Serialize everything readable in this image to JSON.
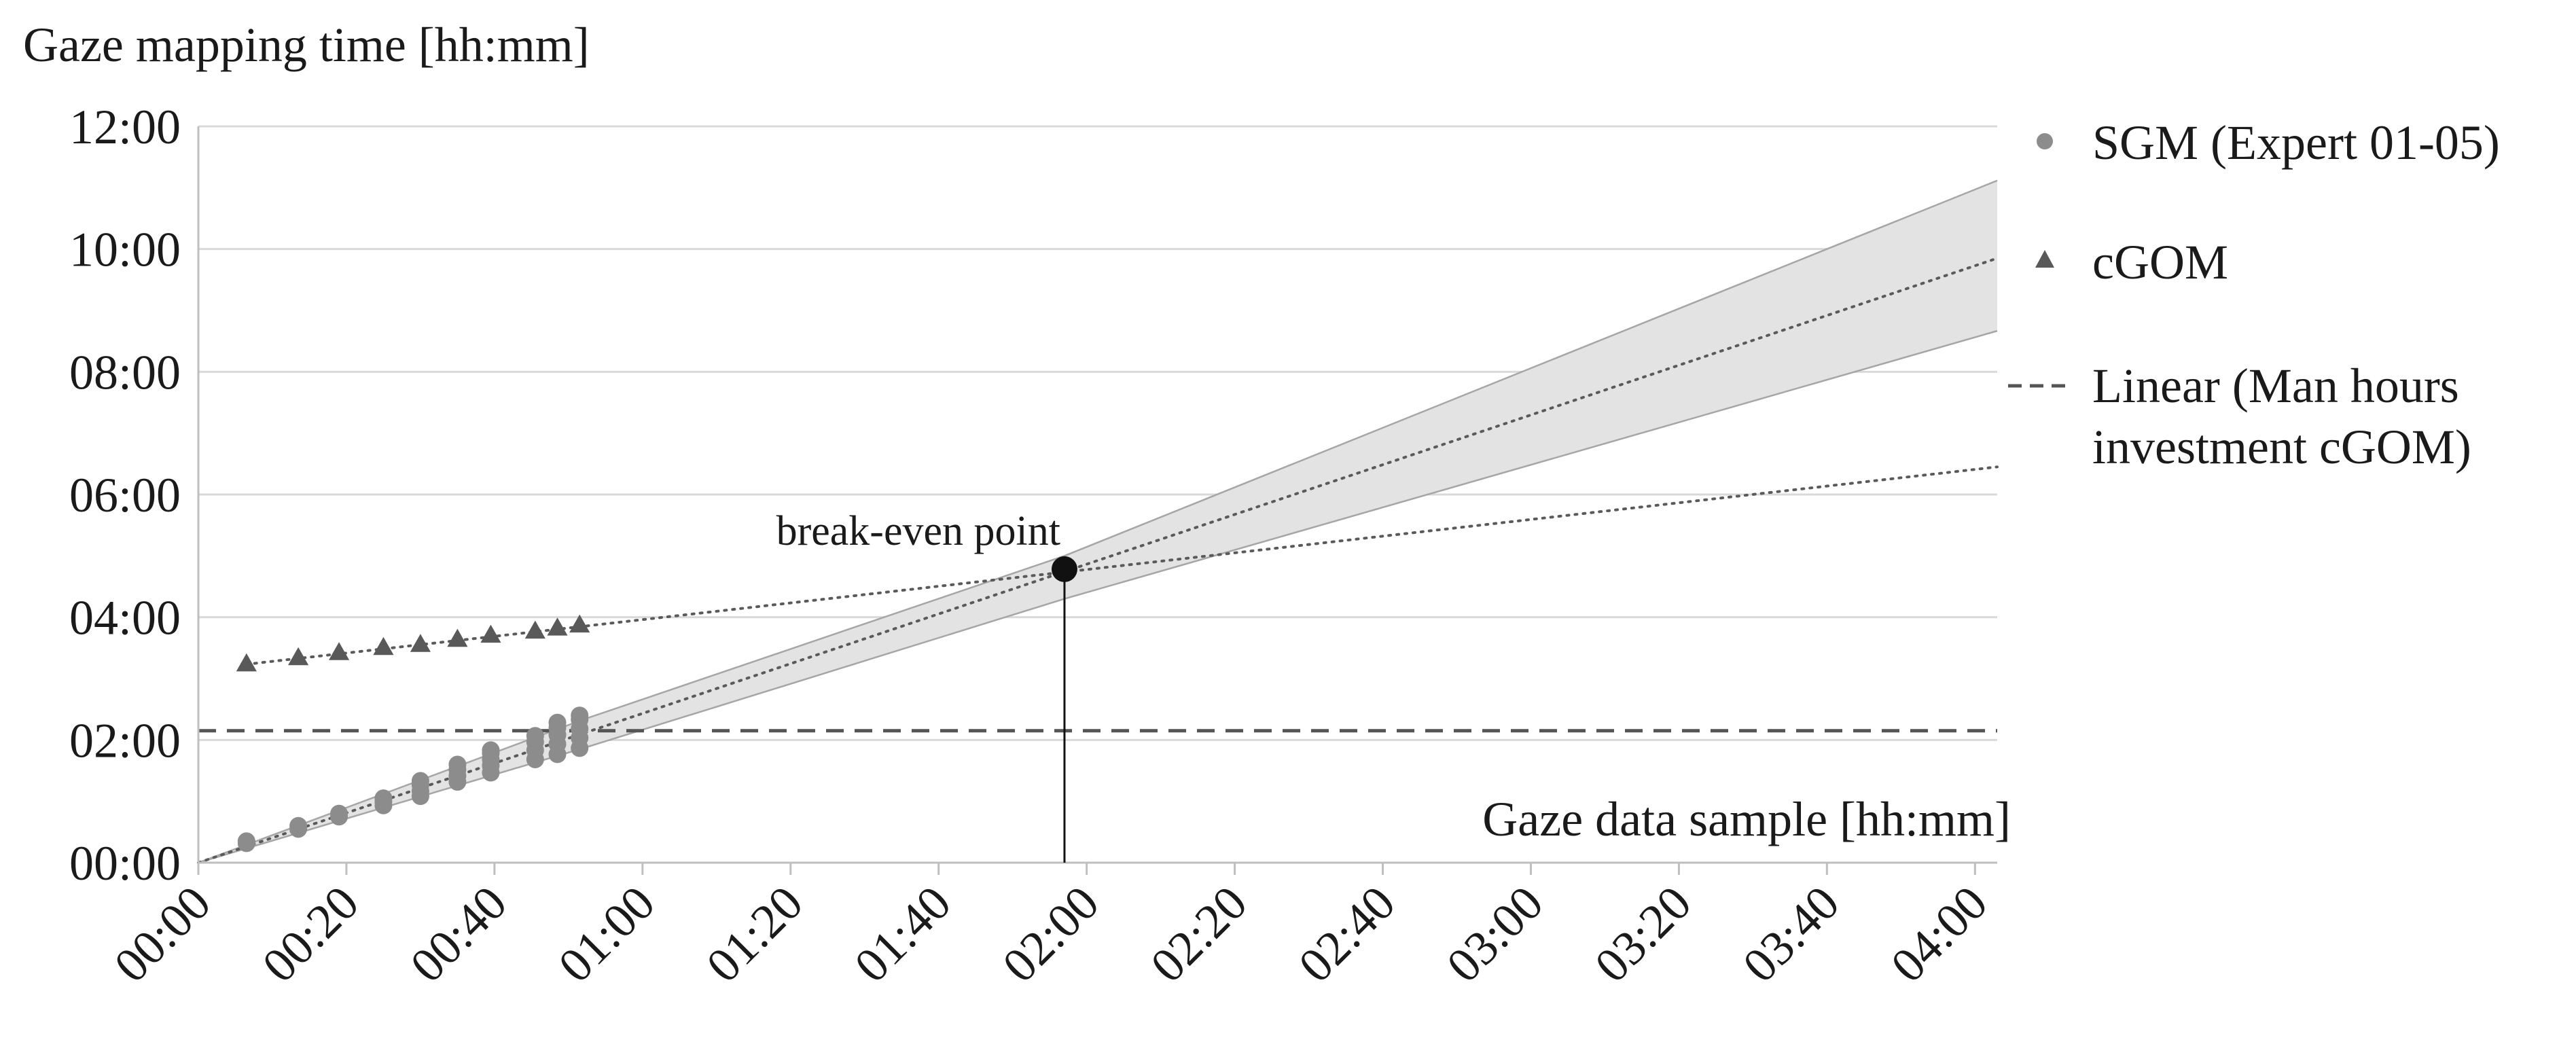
{
  "chart_data": {
    "type": "scatter",
    "ylabel": "Gaze mapping time [hh:mm]",
    "xlabel": "Gaze data sample [hh:mm]",
    "x_unit": "minutes",
    "y_unit": "minutes",
    "xlim": [
      0,
      243
    ],
    "ylim": [
      0,
      720
    ],
    "x_ticks": [
      "00:00",
      "00:20",
      "00:40",
      "01:00",
      "01:20",
      "01:40",
      "02:00",
      "02:20",
      "02:40",
      "03:00",
      "03:20",
      "03:40",
      "04:00"
    ],
    "x_tick_values": [
      0,
      20,
      40,
      60,
      80,
      100,
      120,
      140,
      160,
      180,
      200,
      220,
      240
    ],
    "y_ticks": [
      "00:00",
      "02:00",
      "04:00",
      "06:00",
      "08:00",
      "10:00",
      "12:00"
    ],
    "y_tick_values": [
      0,
      120,
      240,
      360,
      480,
      600,
      720
    ],
    "grid": {
      "horizontal": true,
      "vertical": false
    },
    "legend_position": "right",
    "series": [
      {
        "name": "SGM (Expert 01-05)",
        "marker": "circle",
        "color": "#8c8c8c",
        "points": [
          [
            6.5,
            19
          ],
          [
            6.5,
            21
          ],
          [
            13.5,
            33
          ],
          [
            13.5,
            36
          ],
          [
            19,
            45
          ],
          [
            19,
            48
          ],
          [
            25,
            56
          ],
          [
            25,
            60
          ],
          [
            25,
            63
          ],
          [
            30,
            65
          ],
          [
            30,
            70
          ],
          [
            30,
            76
          ],
          [
            30,
            80
          ],
          [
            35,
            79
          ],
          [
            35,
            85
          ],
          [
            35,
            91
          ],
          [
            35,
            96
          ],
          [
            39.5,
            88
          ],
          [
            39.5,
            95
          ],
          [
            39.5,
            101
          ],
          [
            39.5,
            107
          ],
          [
            39.5,
            110
          ],
          [
            45.5,
            101
          ],
          [
            45.5,
            110
          ],
          [
            45.5,
            118
          ],
          [
            45.5,
            124
          ],
          [
            48.5,
            106
          ],
          [
            48.5,
            116
          ],
          [
            48.5,
            125
          ],
          [
            48.5,
            132
          ],
          [
            48.5,
            137
          ],
          [
            51.5,
            112
          ],
          [
            51.5,
            122
          ],
          [
            51.5,
            131
          ],
          [
            51.5,
            140
          ],
          [
            51.5,
            144
          ]
        ]
      },
      {
        "name": "cGOM",
        "marker": "triangle",
        "color": "#595959",
        "points": [
          [
            6.5,
            194
          ],
          [
            13.5,
            200
          ],
          [
            19,
            205
          ],
          [
            25,
            210
          ],
          [
            30,
            213
          ],
          [
            35,
            218
          ],
          [
            39.5,
            222
          ],
          [
            45.5,
            226
          ],
          [
            48.5,
            229
          ],
          [
            51.5,
            232
          ]
        ]
      },
      {
        "name": "Linear (Man hours investment cGOM)",
        "style": "dashed",
        "color": "#555555",
        "value": 129
      }
    ],
    "trendlines": [
      {
        "of": "SGM (Expert 01-05)",
        "style": "dotted",
        "from": [
          0,
          0
        ],
        "to": [
          243,
          591
        ]
      },
      {
        "of": "cGOM",
        "style": "dotted",
        "from": [
          6.5,
          194
        ],
        "to": [
          243,
          387
        ]
      }
    ],
    "confidence_band": {
      "of": "SGM (Expert 01-05)",
      "upper": [
        [
          0,
          0
        ],
        [
          52,
          140
        ],
        [
          117,
          300
        ],
        [
          243,
          667
        ]
      ],
      "lower": [
        [
          0,
          0
        ],
        [
          52,
          112
        ],
        [
          117,
          258
        ],
        [
          243,
          520
        ]
      ]
    },
    "annotations": [
      {
        "text": "break-even point",
        "x": 117,
        "y": 287
      }
    ]
  },
  "colors": {
    "grid": "#d9d9d9",
    "axis": "#bfbfbf",
    "band_fill": "#e3e3e3",
    "band_edge": "#a6a6a6",
    "trend": "#5a5a5a",
    "breakeven": "#111111"
  }
}
